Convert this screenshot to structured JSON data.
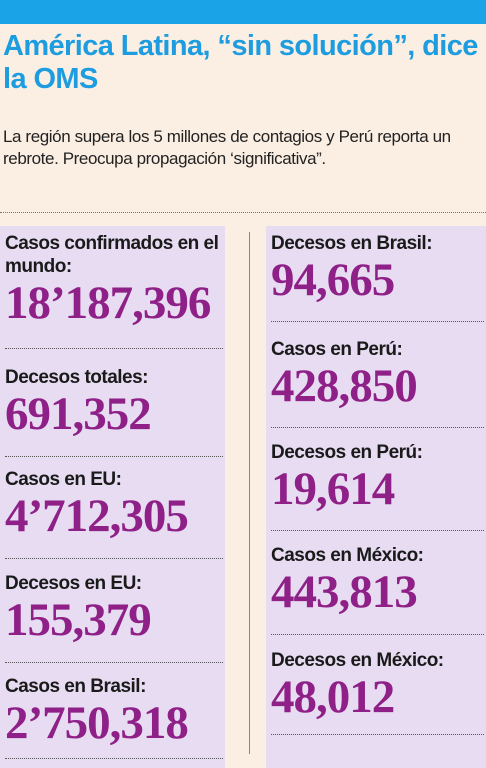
{
  "header": {
    "title": "América Latina, “sin solución”, dice la OMS",
    "subtitle": "La región supera los 5 millones de contagios y Perú reporta un rebrote. Preocupa propagación ‘significativa”."
  },
  "colors": {
    "accent": "#1aa3e6",
    "title": "#1d9de0",
    "value": "#8e2087",
    "panel": "#e7dcf2",
    "background": "#fbefe4"
  },
  "stats_left": [
    {
      "label": "Casos confirmados en el mundo:",
      "value": "18’187,396"
    },
    {
      "label": "Decesos totales:",
      "value": "691,352"
    },
    {
      "label": "Casos en EU:",
      "value": "4’712,305"
    },
    {
      "label": "Decesos en EU:",
      "value": "155,379"
    },
    {
      "label": "Casos en Brasil:",
      "value": "2’750,318"
    }
  ],
  "stats_right": [
    {
      "label": "Decesos en Brasil:",
      "value": "94,665"
    },
    {
      "label": "Casos en Perú:",
      "value": "428,850"
    },
    {
      "label": "Decesos en Perú:",
      "value": "19,614"
    },
    {
      "label": "Casos en México:",
      "value": "443,813"
    },
    {
      "label": "Decesos en México:",
      "value": "48,012"
    }
  ]
}
